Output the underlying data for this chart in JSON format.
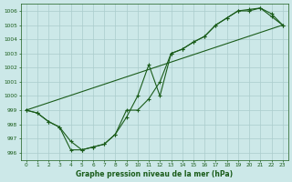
{
  "title": "Graphe pression niveau de la mer (hPa)",
  "background_color": "#cce8e8",
  "grid_color": "#aacccc",
  "line_color": "#1a5c1a",
  "xlim": [
    -0.5,
    23.5
  ],
  "ylim": [
    995.5,
    1006.5
  ],
  "yticks": [
    996,
    997,
    998,
    999,
    1000,
    1001,
    1002,
    1003,
    1004,
    1005,
    1006
  ],
  "xticks": [
    0,
    1,
    2,
    3,
    4,
    5,
    6,
    7,
    8,
    9,
    10,
    11,
    12,
    13,
    14,
    15,
    16,
    17,
    18,
    19,
    20,
    21,
    22,
    23
  ],
  "series_main": {
    "x": [
      0,
      1,
      2,
      3,
      4,
      5,
      6,
      7,
      8,
      9,
      10,
      11,
      12,
      13,
      14,
      15,
      16,
      17,
      18,
      19,
      20,
      21,
      22,
      23
    ],
    "y": [
      999.0,
      998.8,
      998.2,
      997.8,
      996.2,
      996.2,
      996.4,
      996.6,
      997.3,
      999.0,
      999.0,
      999.8,
      1001.0,
      1003.0,
      1003.3,
      1003.8,
      1004.2,
      1005.0,
      1005.5,
      1006.0,
      1006.0,
      1006.2,
      1005.8,
      1005.0
    ]
  },
  "series_var": {
    "x": [
      0,
      1,
      2,
      3,
      4,
      5,
      6,
      7,
      8,
      9,
      10,
      11,
      12,
      13,
      14,
      15,
      16,
      17,
      18,
      19,
      20,
      21,
      22,
      23
    ],
    "y": [
      999.0,
      998.8,
      998.2,
      997.8,
      996.8,
      996.2,
      996.4,
      996.6,
      997.3,
      998.5,
      1000.0,
      1002.2,
      1000.0,
      1003.0,
      1003.3,
      1003.8,
      1004.2,
      1005.0,
      1005.5,
      1006.0,
      1006.1,
      1006.2,
      1005.6,
      1005.0
    ]
  },
  "series_linear": {
    "x": [
      0,
      23
    ],
    "y": [
      999.0,
      1005.0
    ]
  }
}
